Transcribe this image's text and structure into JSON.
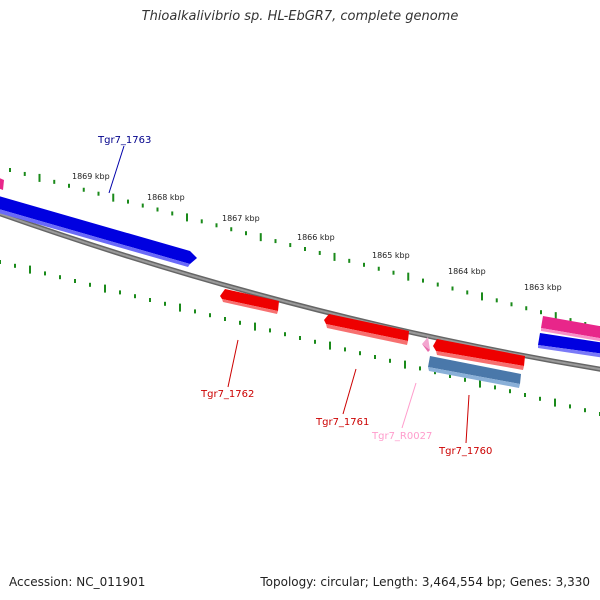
{
  "title": "Thioalkalivibrio sp. HL-EbGR7, complete genome",
  "footer": {
    "accession": "Accession: NC_011901",
    "topology": "Topology: circular; Length: 3,464,554 bp; Genes: 3,330"
  },
  "colors": {
    "backbone": "#7a7a7a",
    "tick": "#1a8a1a",
    "plus_strand_gene": "#0000ee",
    "minus_strand_gene": "#ee0000",
    "rna_gene": "#f06ab0",
    "misc_feature": "#4a7ab0",
    "plus_label": "#00008b",
    "minus_label": "#cc0000",
    "rna_label": "#ff9ccc"
  },
  "kbp_ticks": [
    {
      "label": "1869 kbp"
    },
    {
      "label": "1868 kbp"
    },
    {
      "label": "1867 kbp"
    },
    {
      "label": "1866 kbp"
    },
    {
      "label": "1865 kbp"
    },
    {
      "label": "1864 kbp"
    },
    {
      "label": "1863 kbp"
    }
  ],
  "gene_labels": [
    {
      "name": "Tgr7_1763"
    },
    {
      "name": "Tgr7_1762"
    },
    {
      "name": "Tgr7_1761"
    },
    {
      "name": "Tgr7_R0027"
    },
    {
      "name": "Tgr7_1760"
    }
  ]
}
